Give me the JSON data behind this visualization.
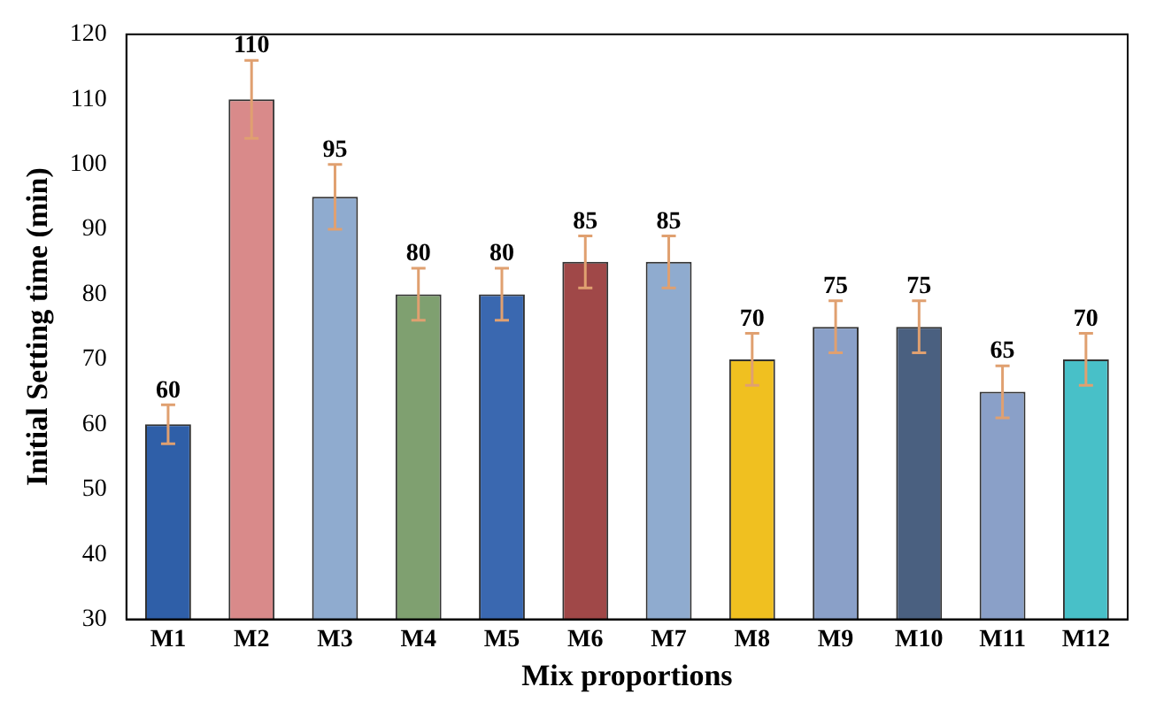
{
  "chart_data": {
    "type": "bar",
    "xlabel": "Mix proportions",
    "ylabel": "Initial Setting time (min)",
    "categories": [
      "M1",
      "M2",
      "M3",
      "M4",
      "M5",
      "M6",
      "M7",
      "M8",
      "M9",
      "M10",
      "M11",
      "M12"
    ],
    "values": [
      60,
      110,
      95,
      80,
      80,
      85,
      85,
      70,
      75,
      75,
      65,
      70
    ],
    "colors": [
      "#2f5fa8",
      "#d98a8a",
      "#8fabcf",
      "#7fa070",
      "#3a68b0",
      "#a04848",
      "#8fabcf",
      "#f0c020",
      "#8aa0c8",
      "#4a6080",
      "#8aa0c8",
      "#48c0c8"
    ],
    "errors": [
      3,
      6,
      5,
      4,
      4,
      4,
      4,
      4,
      4,
      4,
      4,
      4
    ],
    "data_labels": true,
    "ylim": [
      30,
      120
    ],
    "yticks": [
      30,
      40,
      50,
      60,
      70,
      80,
      90,
      100,
      110,
      120
    ],
    "grid": false,
    "legend": false
  }
}
